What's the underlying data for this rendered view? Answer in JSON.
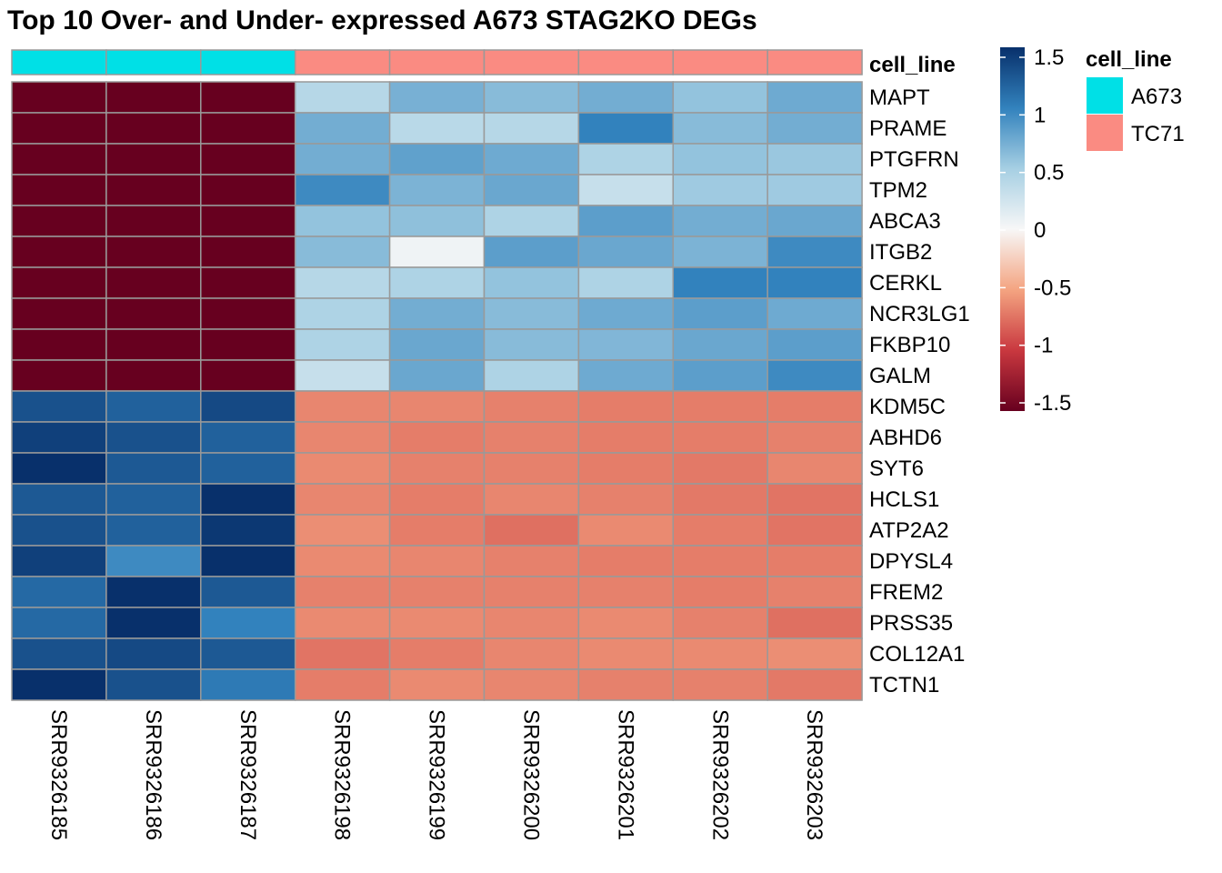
{
  "chart_data": {
    "type": "heatmap",
    "title": "Top 10 Over- and Under- expressed A673 STAG2KO DEGs",
    "rows": [
      "MAPT",
      "PRAME",
      "PTGFRN",
      "TPM2",
      "ABCA3",
      "ITGB2",
      "CERKL",
      "NCR3LG1",
      "FKBP10",
      "GALM",
      "KDM5C",
      "ABHD6",
      "SYT6",
      "HCLS1",
      "ATP2A2",
      "DPYSL4",
      "FREM2",
      "PRSS35",
      "COL12A1",
      "TCTN1"
    ],
    "columns": [
      "SRR9326185",
      "SRR9326186",
      "SRR9326187",
      "SRR9326198",
      "SRR9326199",
      "SRR9326200",
      "SRR9326201",
      "SRR9326202",
      "SRR9326203"
    ],
    "values": [
      [
        -1.57,
        -1.57,
        -1.57,
        0.4,
        0.7,
        0.63,
        0.72,
        0.58,
        0.74
      ],
      [
        -1.57,
        -1.57,
        -1.57,
        0.72,
        0.38,
        0.4,
        1.0,
        0.63,
        0.72
      ],
      [
        -1.57,
        -1.57,
        -1.57,
        0.72,
        0.8,
        0.74,
        0.45,
        0.58,
        0.55
      ],
      [
        -1.57,
        -1.57,
        -1.57,
        0.95,
        0.68,
        0.76,
        0.3,
        0.53,
        0.53
      ],
      [
        -1.57,
        -1.57,
        -1.57,
        0.58,
        0.6,
        0.45,
        0.82,
        0.72,
        0.76
      ],
      [
        -1.57,
        -1.57,
        -1.57,
        0.63,
        0.05,
        0.82,
        0.76,
        0.68,
        0.95
      ],
      [
        -1.57,
        -1.57,
        -1.57,
        0.4,
        0.45,
        0.58,
        0.45,
        1.0,
        1.0
      ],
      [
        -1.57,
        -1.57,
        -1.57,
        0.45,
        0.72,
        0.63,
        0.74,
        0.82,
        0.74
      ],
      [
        -1.57,
        -1.6,
        -1.57,
        0.45,
        0.76,
        0.63,
        0.66,
        0.76,
        0.82
      ],
      [
        -1.57,
        -1.57,
        -1.6,
        0.3,
        0.76,
        0.45,
        0.74,
        0.82,
        0.95
      ],
      [
        1.3,
        1.2,
        1.35,
        -0.64,
        -0.64,
        -0.66,
        -0.68,
        -0.68,
        -0.68
      ],
      [
        1.4,
        1.3,
        1.2,
        -0.64,
        -0.68,
        -0.66,
        -0.68,
        -0.68,
        -0.66
      ],
      [
        1.5,
        1.25,
        1.2,
        -0.62,
        -0.66,
        -0.66,
        -0.68,
        -0.7,
        -0.64
      ],
      [
        1.25,
        1.2,
        1.55,
        -0.64,
        -0.68,
        -0.64,
        -0.66,
        -0.7,
        -0.72
      ],
      [
        1.3,
        1.2,
        1.45,
        -0.6,
        -0.68,
        -0.74,
        -0.62,
        -0.68,
        -0.72
      ],
      [
        1.4,
        0.95,
        1.6,
        -0.62,
        -0.64,
        -0.66,
        -0.68,
        -0.68,
        -0.68
      ],
      [
        1.15,
        1.5,
        1.25,
        -0.66,
        -0.66,
        -0.66,
        -0.66,
        -0.68,
        -0.66
      ],
      [
        1.15,
        1.7,
        1.0,
        -0.62,
        -0.62,
        -0.64,
        -0.62,
        -0.66,
        -0.74
      ],
      [
        1.3,
        1.35,
        1.25,
        -0.72,
        -0.68,
        -0.64,
        -0.62,
        -0.62,
        -0.6
      ],
      [
        1.5,
        1.3,
        1.05,
        -0.68,
        -0.62,
        -0.64,
        -0.66,
        -0.66,
        -0.7
      ]
    ],
    "color_scale": {
      "min": -1.5,
      "max": 1.5,
      "stops": [
        {
          "value": -1.5,
          "color": "#67001f"
        },
        {
          "value": -1.0,
          "color": "#c9383f"
        },
        {
          "value": -0.5,
          "color": "#f4a481"
        },
        {
          "value": 0.0,
          "color": "#f7f7f7"
        },
        {
          "value": 0.5,
          "color": "#a6cfe3"
        },
        {
          "value": 1.0,
          "color": "#3282bd"
        },
        {
          "value": 1.5,
          "color": "#08306b"
        }
      ],
      "ticks": [
        "1.5",
        "1",
        "0.5",
        "0",
        "-0.5",
        "-1",
        "-1.5"
      ],
      "tick_values": [
        1.5,
        1,
        0.5,
        0,
        -0.5,
        -1,
        -1.5
      ]
    },
    "annotation": {
      "name": "cell_line",
      "values": [
        "A673",
        "A673",
        "A673",
        "TC71",
        "TC71",
        "TC71",
        "TC71",
        "TC71",
        "TC71"
      ],
      "legend": [
        {
          "label": "A673",
          "color": "#00e0e6"
        },
        {
          "label": "TC71",
          "color": "#fa8b82"
        }
      ]
    }
  }
}
